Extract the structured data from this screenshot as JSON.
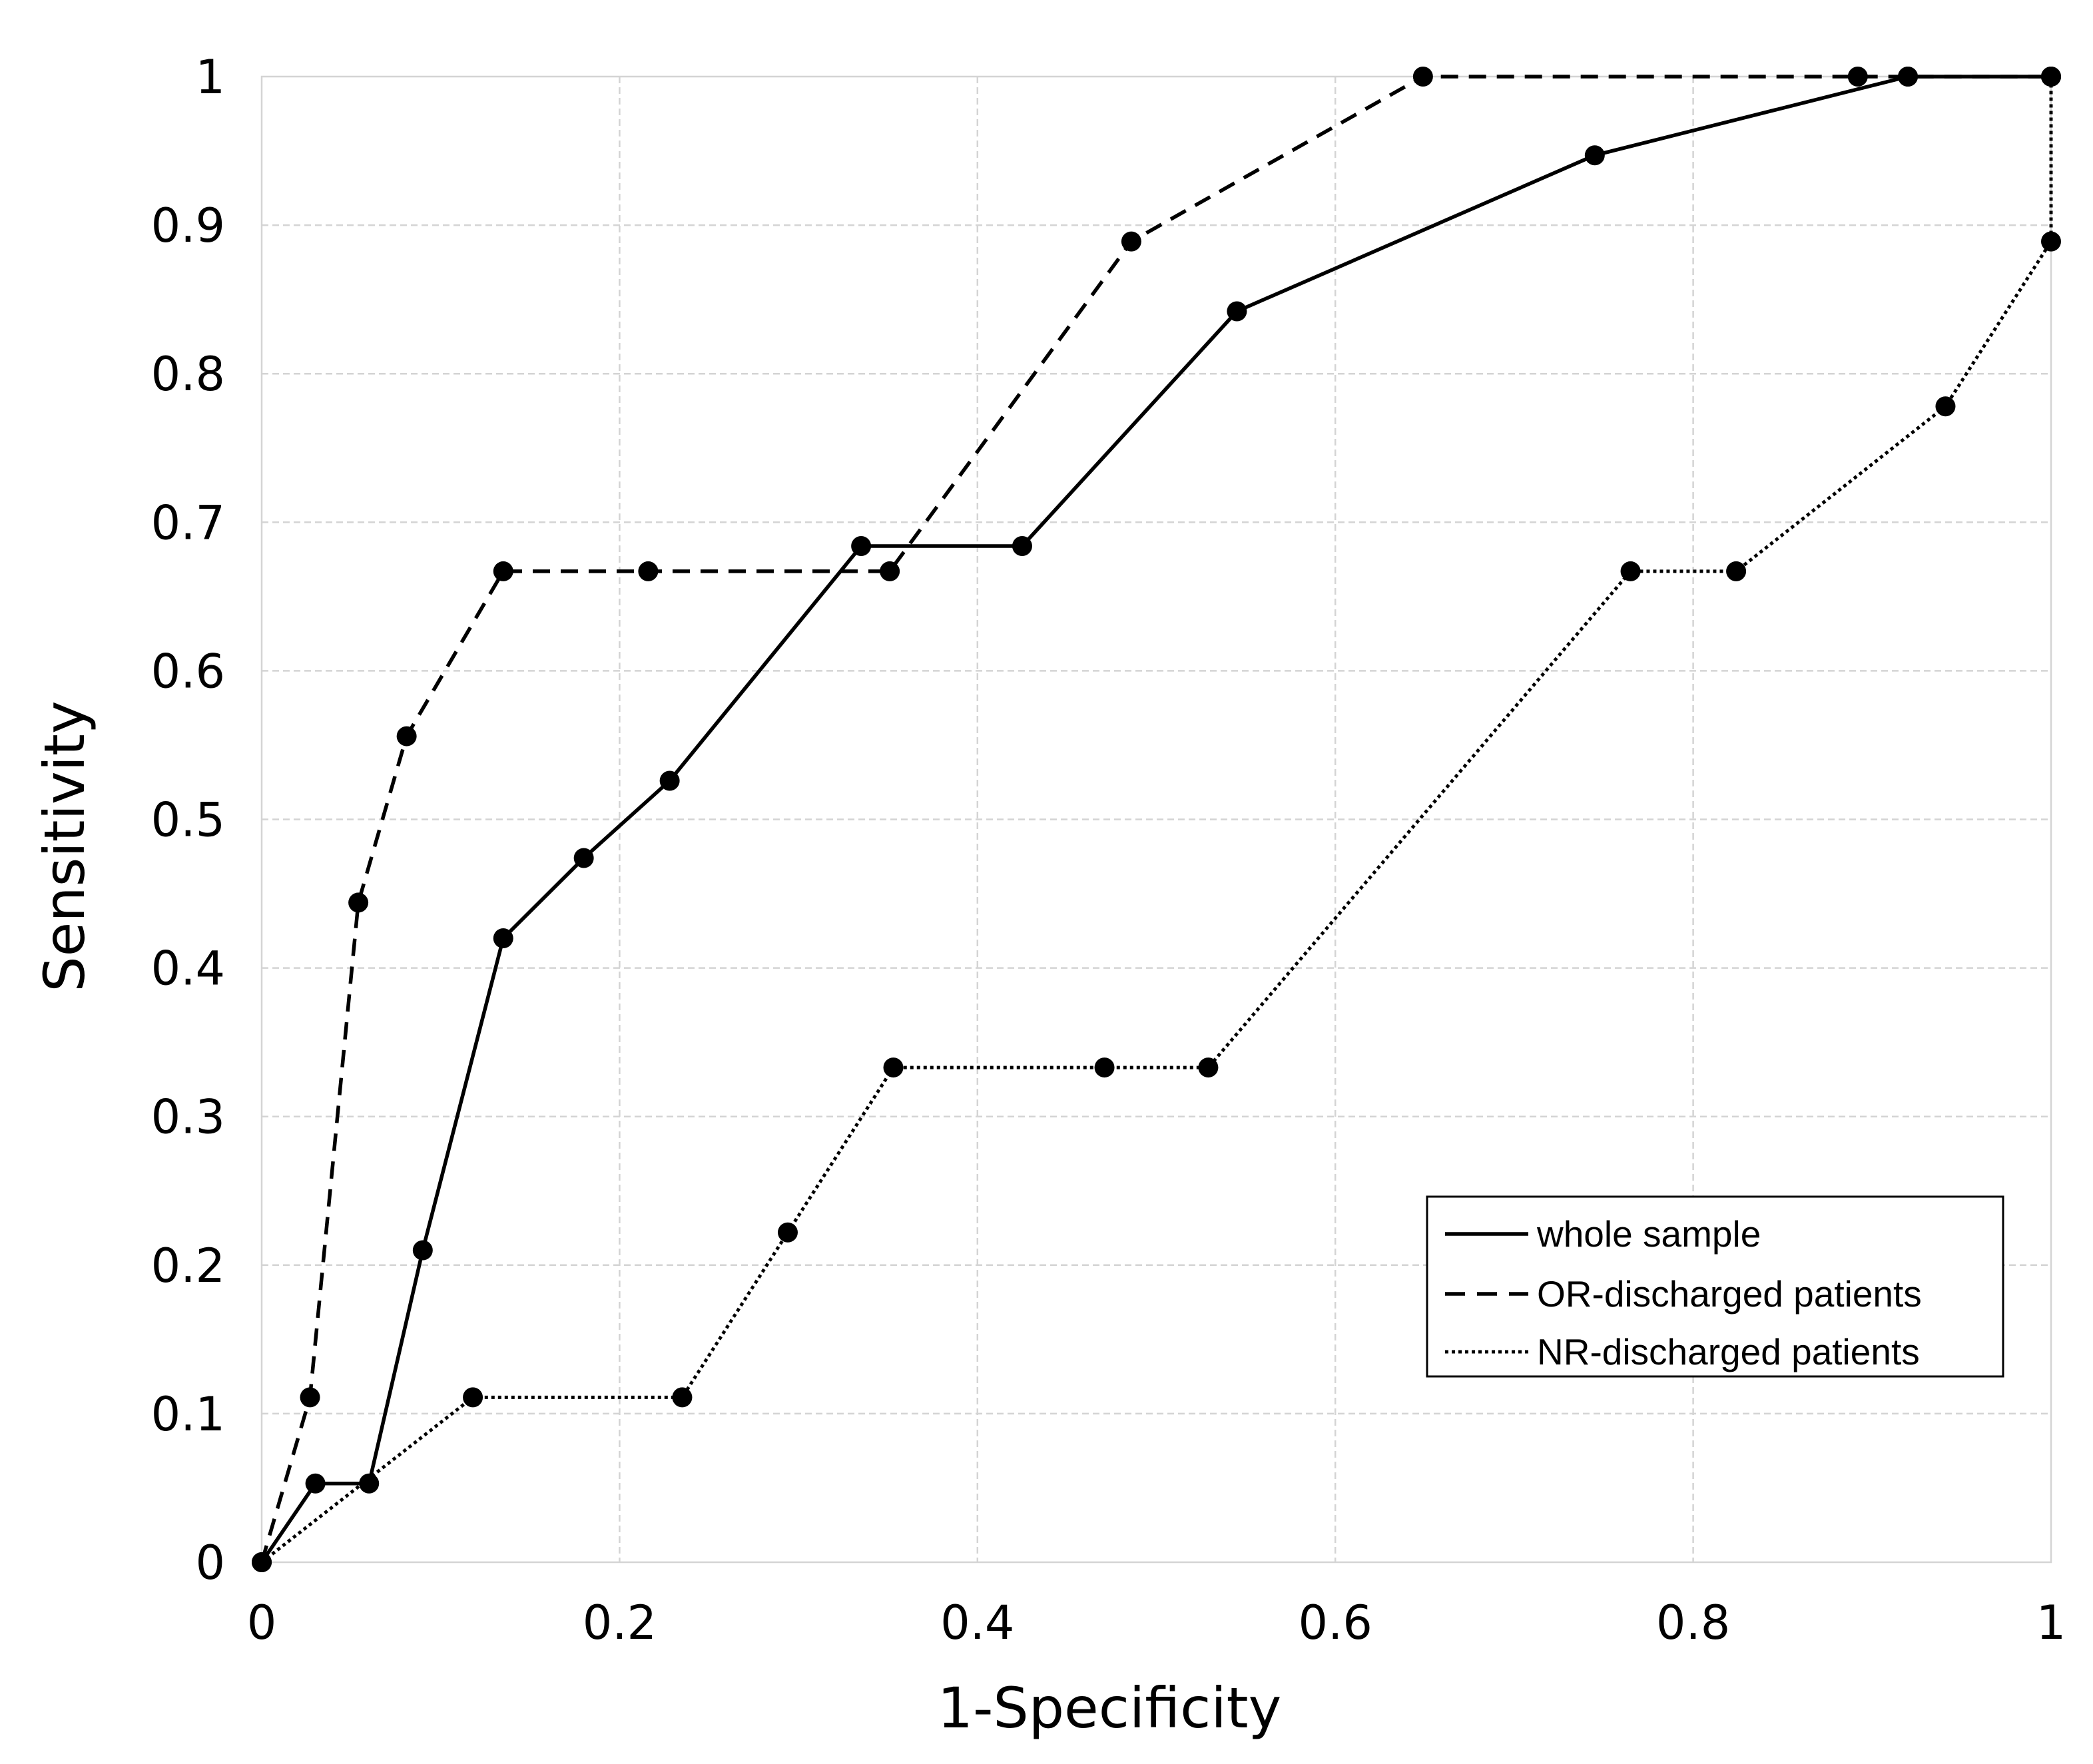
{
  "chart_data": {
    "type": "line",
    "title": "",
    "xlabel": "1-Specificity",
    "ylabel": "Sensitivity",
    "xlim": [
      0,
      1
    ],
    "ylim": [
      0,
      1
    ],
    "x_ticks": [
      "0",
      "0.2",
      "0.4",
      "0.6",
      "0.8",
      "1"
    ],
    "y_ticks": [
      "0",
      "0.1",
      "0.2",
      "0.3",
      "0.4",
      "0.5",
      "0.6",
      "0.7",
      "0.8",
      "0.9",
      "1"
    ],
    "x_tick_values": [
      0,
      0.2,
      0.4,
      0.6,
      0.8,
      1
    ],
    "y_tick_values": [
      0,
      0.1,
      0.2,
      0.3,
      0.4,
      0.5,
      0.6,
      0.7,
      0.8,
      0.9,
      1
    ],
    "grid": true,
    "legend_position": "bottom-right",
    "series": [
      {
        "name": "whole sample",
        "style": "solid",
        "color": "#000000",
        "x": [
          0,
          0.03,
          0.06,
          0.09,
          0.135,
          0.18,
          0.228,
          0.335,
          0.425,
          0.545,
          0.745,
          0.92,
          1.0
        ],
        "y": [
          0,
          0.053,
          0.053,
          0.21,
          0.42,
          0.474,
          0.526,
          0.684,
          0.684,
          0.842,
          0.947,
          1.0,
          1.0
        ]
      },
      {
        "name": "OR-discharged patients",
        "style": "dashed",
        "color": "#000000",
        "x": [
          0,
          0.027,
          0.054,
          0.081,
          0.135,
          0.216,
          0.351,
          0.486,
          0.649,
          0.892,
          0.92,
          1.0
        ],
        "y": [
          0,
          0.111,
          0.444,
          0.556,
          0.667,
          0.667,
          0.667,
          0.889,
          1.0,
          1.0,
          1.0,
          1.0
        ]
      },
      {
        "name": "NR-discharged patients",
        "style": "dotted",
        "color": "#000000",
        "x": [
          0,
          0.118,
          0.235,
          0.294,
          0.353,
          0.471,
          0.529,
          0.765,
          0.824,
          0.941,
          1.0,
          1.0
        ],
        "y": [
          0,
          0.111,
          0.111,
          0.222,
          0.333,
          0.333,
          0.333,
          0.667,
          0.667,
          0.778,
          0.889,
          1.0
        ]
      }
    ]
  }
}
